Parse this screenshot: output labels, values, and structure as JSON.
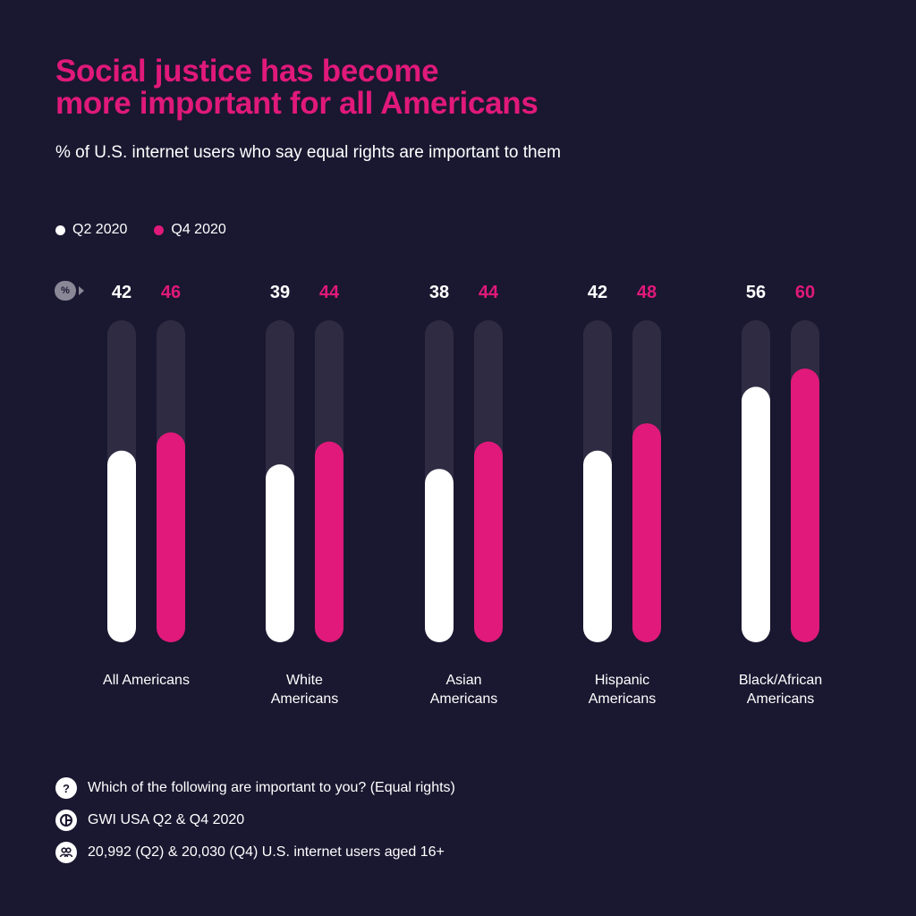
{
  "header": {
    "title_line1": "Social justice has become",
    "title_line2": "more important for all Americans",
    "subtitle": "% of U.S. internet users who say equal rights are important to them"
  },
  "axis_badge": "%",
  "colors": {
    "background": "#1a1730",
    "q2": "#ffffff",
    "q4": "#e0197a",
    "track": "#2e2b43"
  },
  "chart_data": {
    "type": "bar",
    "categories": [
      [
        "All Americans"
      ],
      [
        "White",
        "Americans"
      ],
      [
        "Asian",
        "Americans"
      ],
      [
        "Hispanic",
        "Americans"
      ],
      [
        "Black/African",
        "Americans"
      ]
    ],
    "series": [
      {
        "name": "Q2 2020",
        "values": [
          42,
          39,
          38,
          42,
          56
        ]
      },
      {
        "name": "Q4 2020",
        "values": [
          46,
          44,
          44,
          48,
          60
        ]
      }
    ],
    "ylim": [
      0,
      100
    ],
    "legend": "top-left"
  },
  "notes": {
    "question": "Which of the following are important to you? (Equal rights)",
    "source": "GWI USA Q2 & Q4 2020",
    "sample": "20,992 (Q2) & 20,030 (Q4) U.S. internet users aged 16+"
  }
}
